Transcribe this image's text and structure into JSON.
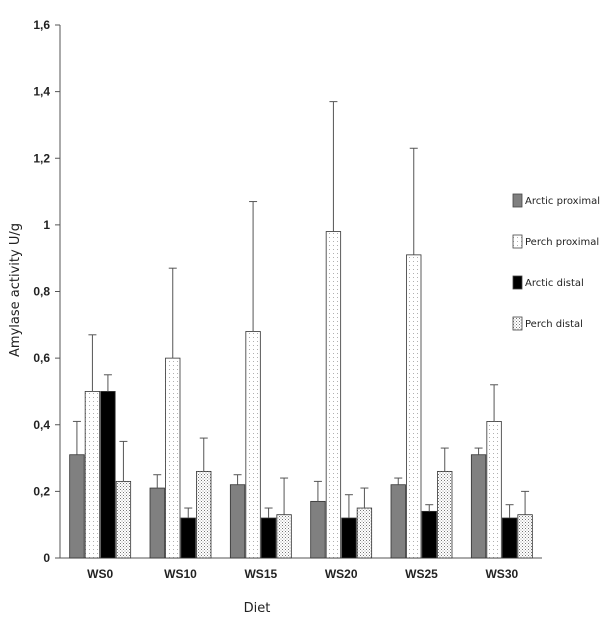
{
  "chart_data": {
    "type": "bar",
    "xlabel": "Diet",
    "ylabel": "Amylase activity  U/g",
    "ylim": [
      0,
      1.6
    ],
    "yticks": [
      "0",
      "0,2",
      "0,4",
      "0,6",
      "0,8",
      "1",
      "1,2",
      "1,4",
      "1,6"
    ],
    "categories": [
      "WS0",
      "WS10",
      "WS15",
      "WS20",
      "WS25",
      "WS30"
    ],
    "legend_position": "right",
    "grid": false,
    "series": [
      {
        "name": "Arctic proximal",
        "fill": "#808080",
        "pattern": "solid",
        "values": [
          0.31,
          0.21,
          0.22,
          0.17,
          0.22,
          0.31
        ],
        "errors": [
          0.1,
          0.04,
          0.03,
          0.06,
          0.02,
          0.02
        ]
      },
      {
        "name": "Perch proximal",
        "fill": "#ffffff",
        "pattern": "dots-light",
        "values": [
          0.5,
          0.6,
          0.68,
          0.98,
          0.91,
          0.41
        ],
        "errors": [
          0.17,
          0.27,
          0.39,
          0.39,
          0.32,
          0.11
        ]
      },
      {
        "name": "Arctic distal",
        "fill": "#000000",
        "pattern": "solid",
        "values": [
          0.5,
          0.12,
          0.12,
          0.12,
          0.14,
          0.12
        ],
        "errors": [
          0.05,
          0.03,
          0.03,
          0.07,
          0.02,
          0.04
        ]
      },
      {
        "name": "Perch distal",
        "fill": "#ffffff",
        "pattern": "dots-dense",
        "values": [
          0.23,
          0.26,
          0.13,
          0.15,
          0.26,
          0.13
        ],
        "errors": [
          0.12,
          0.1,
          0.11,
          0.06,
          0.07,
          0.07
        ]
      }
    ]
  }
}
